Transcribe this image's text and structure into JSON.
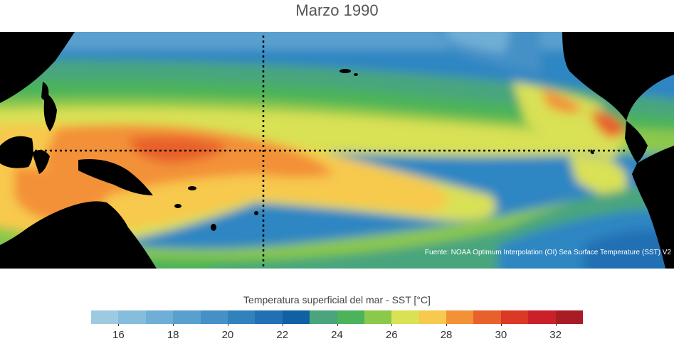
{
  "title": "Marzo 1990",
  "source": "Fuente: NOAA Optimum Interpolation (OI) Sea Surface Temperature (SST) V2",
  "legend": {
    "title": "Temperatura superficial del mar - SST  [°C]",
    "min": 15,
    "max": 33,
    "bin_width": 1,
    "colors": [
      "#9ecae1",
      "#86bddc",
      "#6faed6",
      "#5aa0cf",
      "#4590c6",
      "#3181bd",
      "#2070b4",
      "#1060a4",
      "#4aa57e",
      "#4cb35a",
      "#8cc84c",
      "#d9e154",
      "#f7c94e",
      "#f39137",
      "#e8602b",
      "#db3826",
      "#c9202a",
      "#a81c26"
    ],
    "tick_values": [
      16,
      18,
      20,
      22,
      24,
      26,
      28,
      30,
      32
    ]
  },
  "map": {
    "region": "Tropical Pacific Ocean",
    "land_color": "#000000",
    "reference_lines": {
      "equator_lat": 0,
      "meridian_lon": -180,
      "style": "dotted"
    }
  }
}
